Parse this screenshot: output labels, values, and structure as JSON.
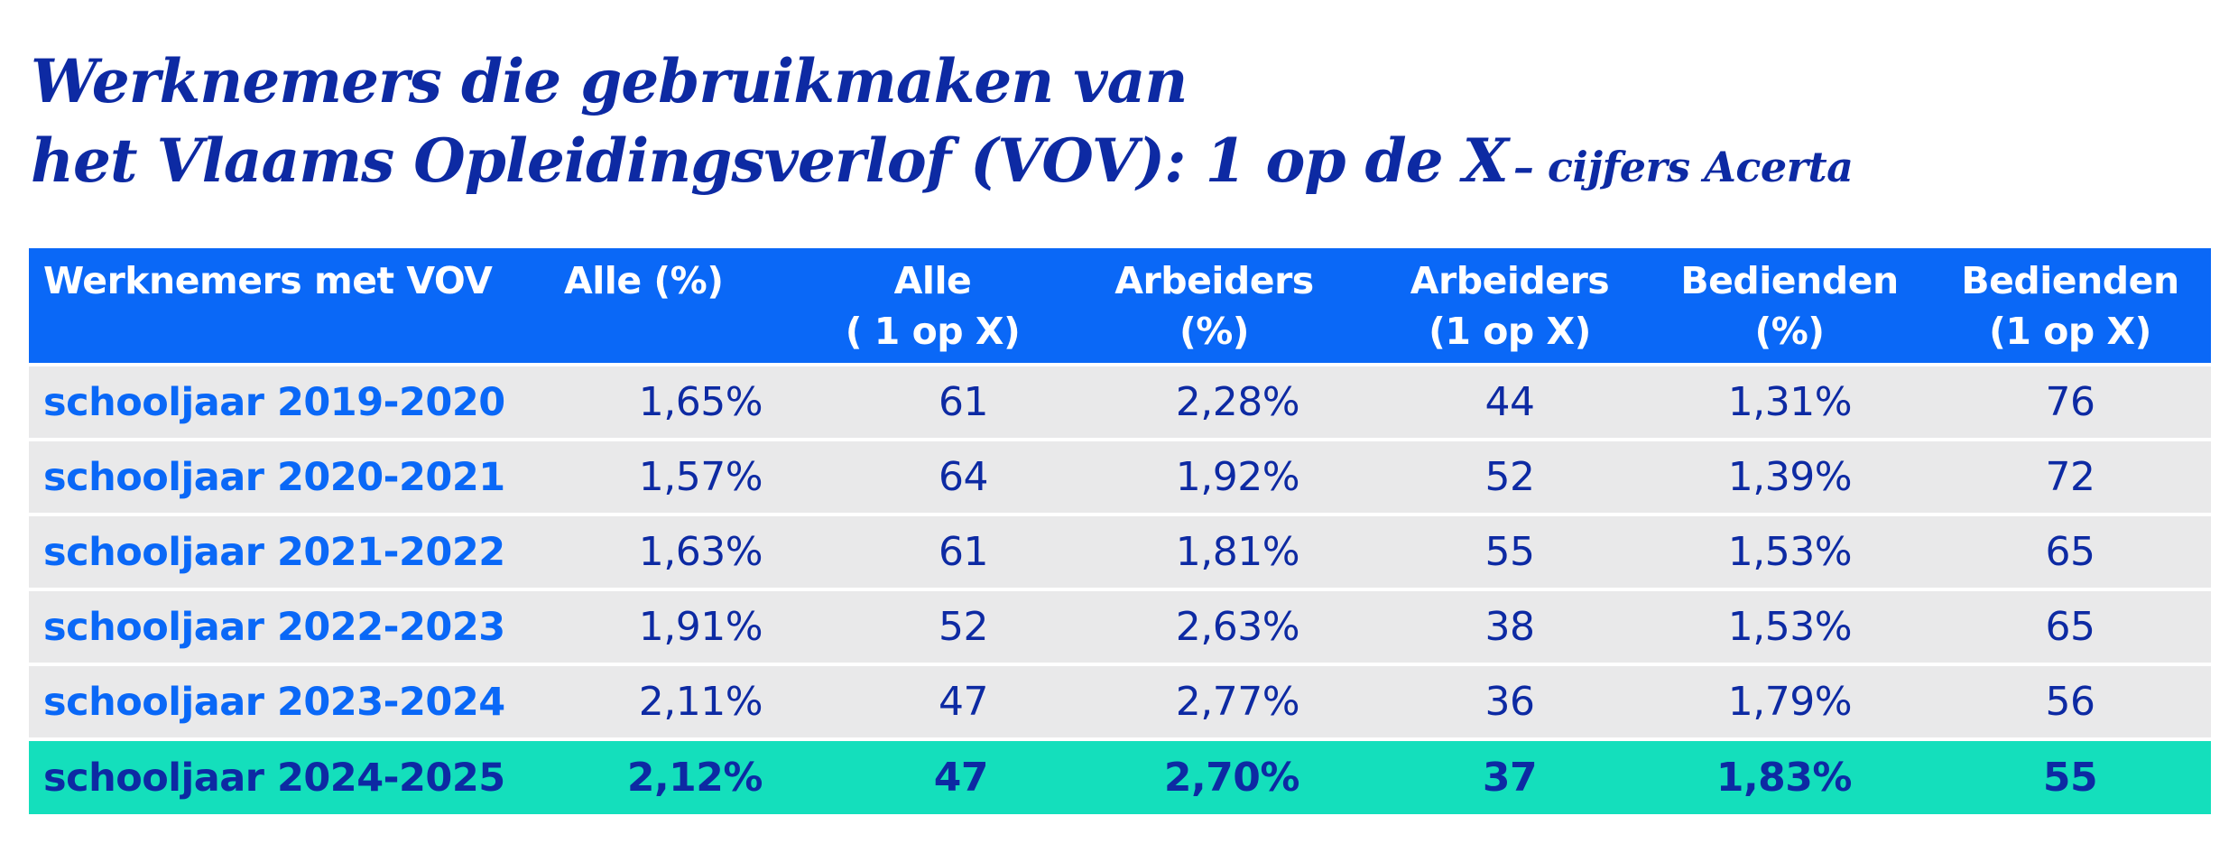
{
  "title": {
    "line1": "Werknemers die gebruikmaken van",
    "line2": "het Vlaams Opleidingsverlof (VOV): 1 op de X",
    "suffix": "– cijfers Acerta"
  },
  "colors": {
    "title": "#0d2aa3",
    "header_bg": "#0a68f7",
    "row_bg": "#e9e9ea",
    "highlight_bg": "#14dfbc",
    "label_text": "#0a68f7",
    "value_text": "#0d2aa3"
  },
  "chart_data": {
    "type": "table",
    "columns": [
      {
        "line1": "Werknemers met VOV",
        "line2": ""
      },
      {
        "line1": "Alle (%)",
        "line2": ""
      },
      {
        "line1": "Alle",
        "line2": "( 1 op X)"
      },
      {
        "line1": "Arbeiders",
        "line2": "(%)"
      },
      {
        "line1": "Arbeiders",
        "line2": "(1 op X)"
      },
      {
        "line1": "Bedienden",
        "line2": "(%)"
      },
      {
        "line1": "Bedienden",
        "line2": "(1 op X)"
      }
    ],
    "rows": [
      {
        "label": "schooljaar 2019-2020",
        "values": [
          "1,65%",
          "61",
          "2,28%",
          "44",
          "1,31%",
          "76"
        ]
      },
      {
        "label": "schooljaar 2020-2021",
        "values": [
          "1,57%",
          "64",
          "1,92%",
          "52",
          "1,39%",
          "72"
        ]
      },
      {
        "label": "schooljaar 2021-2022",
        "values": [
          "1,63%",
          "61",
          "1,81%",
          "55",
          "1,53%",
          "65"
        ]
      },
      {
        "label": "schooljaar 2022-2023",
        "values": [
          "1,91%",
          "52",
          "2,63%",
          "38",
          "1,53%",
          "65"
        ]
      },
      {
        "label": "schooljaar 2023-2024",
        "values": [
          "2,11%",
          "47",
          "2,77%",
          "36",
          "1,79%",
          "56"
        ]
      },
      {
        "label": "schooljaar 2024-2025",
        "values": [
          "2,12%",
          "47",
          "2,70%",
          "37",
          "1,83%",
          "55"
        ]
      }
    ],
    "highlighted_row": "schooljaar 2024-2025"
  }
}
